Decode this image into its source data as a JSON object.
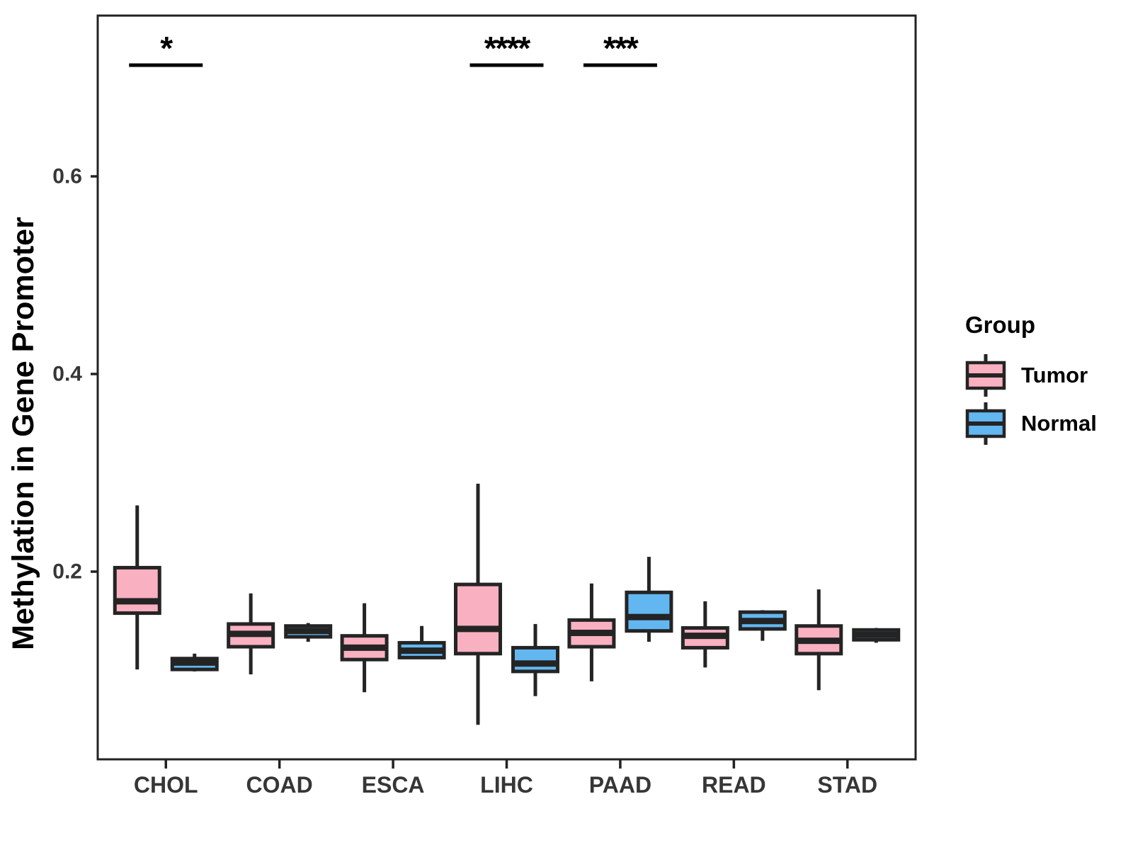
{
  "figure": {
    "y_axis_title": "Methylation in Gene Promoter",
    "legend": {
      "title": "Group",
      "items": [
        {
          "label": "Tumor",
          "color": "#F9B0C1"
        },
        {
          "label": "Normal",
          "color": "#63B7F1"
        }
      ]
    },
    "colors": {
      "box_stroke": "#242424",
      "axis_text": "#363636",
      "panel_border": "#222222",
      "significance": "#000000"
    }
  },
  "chart_data": {
    "type": "boxplot-grouped",
    "title": "",
    "xlabel": "",
    "ylabel": "Methylation in Gene Promoter",
    "categories": [
      "CHOL",
      "COAD",
      "ESCA",
      "LIHC",
      "PAAD",
      "READ",
      "STAD"
    ],
    "y_ticks": [
      0.2,
      0.4,
      0.6
    ],
    "ylim": [
      0.01,
      0.76
    ],
    "grid": false,
    "legend_position": "right",
    "series": [
      {
        "name": "Tumor",
        "color": "#F9B0C1",
        "boxes": [
          {
            "category": "CHOL",
            "low": 0.101,
            "q1": 0.158,
            "median": 0.17,
            "q3": 0.204,
            "high": 0.267
          },
          {
            "category": "COAD",
            "low": 0.096,
            "q1": 0.124,
            "median": 0.137,
            "q3": 0.147,
            "high": 0.178
          },
          {
            "category": "ESCA",
            "low": 0.078,
            "q1": 0.111,
            "median": 0.123,
            "q3": 0.135,
            "high": 0.168
          },
          {
            "category": "LIHC",
            "low": 0.045,
            "q1": 0.117,
            "median": 0.142,
            "q3": 0.187,
            "high": 0.289
          },
          {
            "category": "PAAD",
            "low": 0.089,
            "q1": 0.124,
            "median": 0.138,
            "q3": 0.151,
            "high": 0.188
          },
          {
            "category": "READ",
            "low": 0.103,
            "q1": 0.123,
            "median": 0.135,
            "q3": 0.143,
            "high": 0.17
          },
          {
            "category": "STAD",
            "low": 0.08,
            "q1": 0.117,
            "median": 0.13,
            "q3": 0.145,
            "high": 0.182
          }
        ]
      },
      {
        "name": "Normal",
        "color": "#63B7F1",
        "boxes": [
          {
            "category": "CHOL",
            "low": 0.099,
            "q1": 0.101,
            "median": 0.108,
            "q3": 0.112,
            "high": 0.117
          },
          {
            "category": "COAD",
            "low": 0.129,
            "q1": 0.134,
            "median": 0.14,
            "q3": 0.145,
            "high": 0.148
          },
          {
            "category": "ESCA",
            "low": 0.112,
            "q1": 0.113,
            "median": 0.12,
            "q3": 0.128,
            "high": 0.145
          },
          {
            "category": "LIHC",
            "low": 0.074,
            "q1": 0.099,
            "median": 0.107,
            "q3": 0.123,
            "high": 0.147
          },
          {
            "category": "PAAD",
            "low": 0.129,
            "q1": 0.14,
            "median": 0.154,
            "q3": 0.179,
            "high": 0.215
          },
          {
            "category": "READ",
            "low": 0.13,
            "q1": 0.142,
            "median": 0.15,
            "q3": 0.159,
            "high": 0.161
          },
          {
            "category": "STAD",
            "low": 0.128,
            "q1": 0.131,
            "median": 0.136,
            "q3": 0.141,
            "high": 0.143
          }
        ]
      }
    ],
    "significance": [
      {
        "category": "CHOL",
        "label": "*"
      },
      {
        "category": "LIHC",
        "label": "****"
      },
      {
        "category": "PAAD",
        "label": "***"
      }
    ]
  }
}
